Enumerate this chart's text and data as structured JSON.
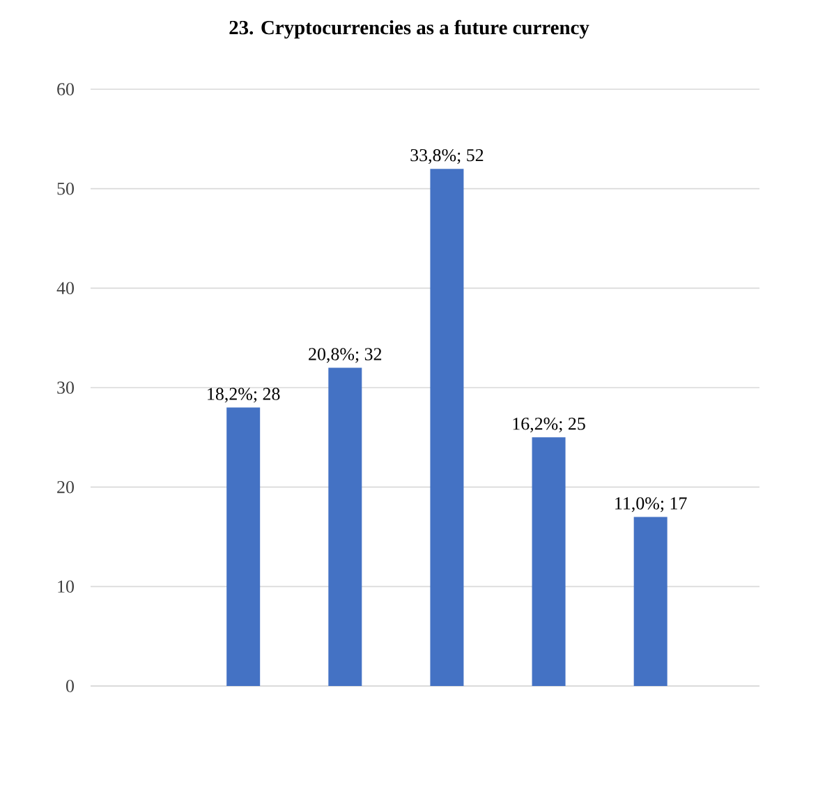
{
  "chart_data": {
    "type": "bar",
    "title": "23. Cryptocurrencies as a future currency",
    "categories": [
      null,
      null,
      null,
      null,
      null
    ],
    "values": [
      28,
      32,
      52,
      25,
      17
    ],
    "value_labels": [
      "18,2%; 28",
      "20,8%; 32",
      "33,8%; 52",
      "16,2%; 25",
      "11,0%; 17"
    ],
    "color": "#4472c4",
    "ylim": [
      0,
      60
    ],
    "yticks": [
      0,
      10,
      20,
      30,
      40,
      50,
      60
    ],
    "grid": "y"
  }
}
